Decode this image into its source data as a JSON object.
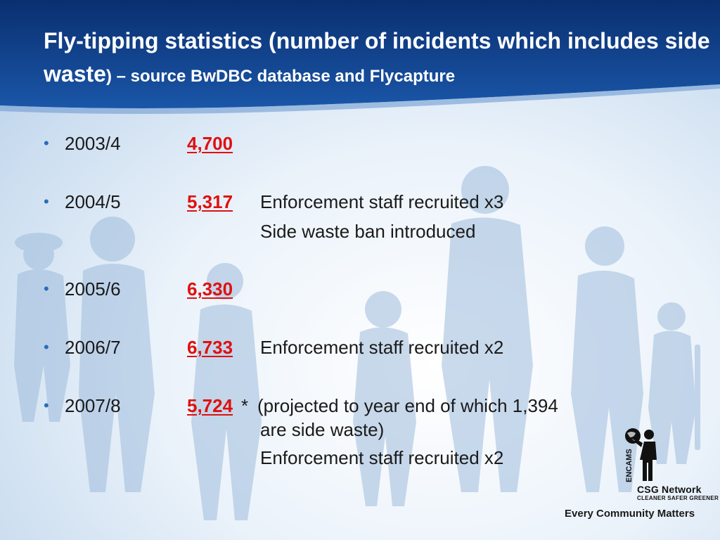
{
  "title": {
    "main": "Fly-tipping statistics (number of incidents which includes side waste",
    "source": ") – source BwDBC database and Flycapture"
  },
  "rows": [
    {
      "year": "2003/4",
      "value": "4,700",
      "notes": []
    },
    {
      "year": "2004/5",
      "value": "5,317",
      "notes": [
        "Enforcement staff recruited x3",
        "Side waste ban introduced"
      ]
    },
    {
      "year": "2005/6",
      "value": "6,330",
      "notes": []
    },
    {
      "year": "2006/7",
      "value": "6,733",
      "notes": [
        "Enforcement staff recruited x2"
      ]
    },
    {
      "year": "2007/8",
      "value": "5,724",
      "asterisk": "*",
      "notes": [
        "(projected to year end of which 1,394",
        "are side waste)",
        "Enforcement staff recruited x2"
      ]
    }
  ],
  "logo": {
    "vertical_text": "ENCAMS",
    "network": "CSG Network",
    "tagline": "CLEANER SAFER GREENER"
  },
  "footer": {
    "tagline": "Every Community Matters"
  },
  "colors": {
    "header_blue": "#0b3f8c",
    "value_red": "#e01010",
    "bullet_blue": "#2b6cb8"
  },
  "icons": {
    "bullet": "bullet-dot-icon",
    "logo": "encams-figure-globe-logo"
  }
}
